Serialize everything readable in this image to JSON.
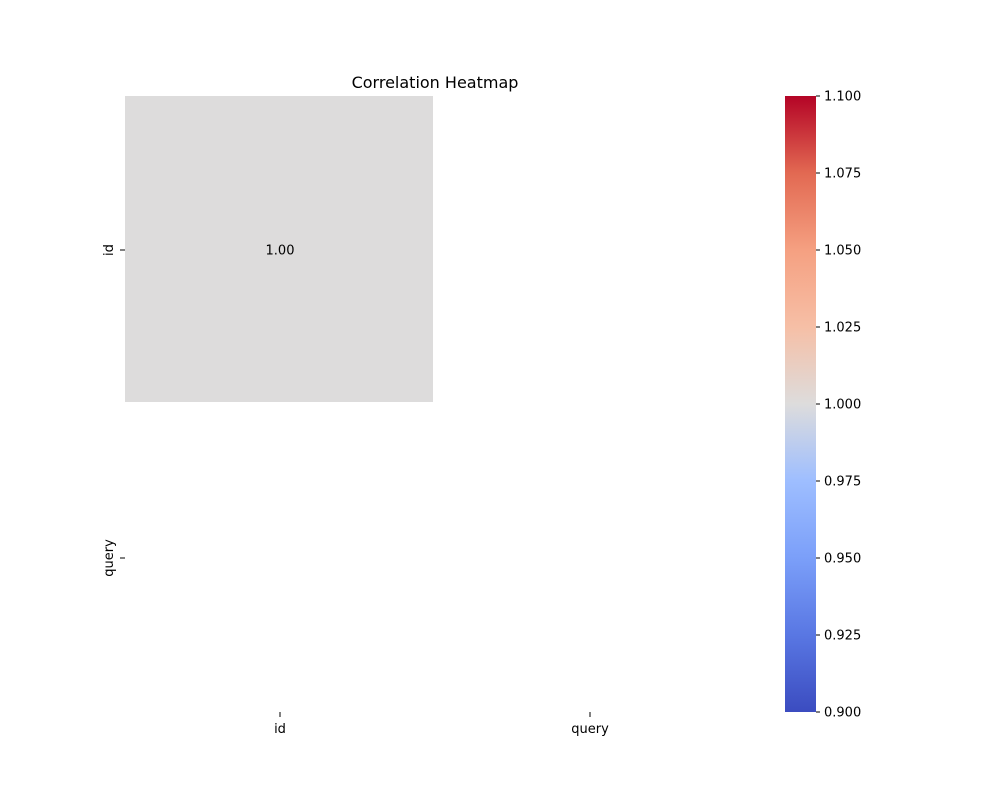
{
  "chart_data": {
    "type": "heatmap",
    "title": "Correlation Heatmap",
    "x_categories": [
      "id",
      "query"
    ],
    "y_categories": [
      "id",
      "query"
    ],
    "values": [
      [
        1.0,
        null
      ],
      [
        null,
        null
      ]
    ],
    "cell_labels": [
      [
        "1.00",
        ""
      ],
      [
        "",
        ""
      ]
    ],
    "colormap": "coolwarm",
    "missing_color": "#ffffff",
    "colorbar": {
      "range": [
        0.9,
        1.1
      ],
      "ticks": [
        0.9,
        0.925,
        0.95,
        0.975,
        1.0,
        1.025,
        1.05,
        1.075,
        1.1
      ],
      "tick_labels": [
        "0.900",
        "0.925",
        "0.950",
        "0.975",
        "1.000",
        "1.025",
        "1.050",
        "1.075",
        "1.100"
      ]
    },
    "grid": false
  }
}
